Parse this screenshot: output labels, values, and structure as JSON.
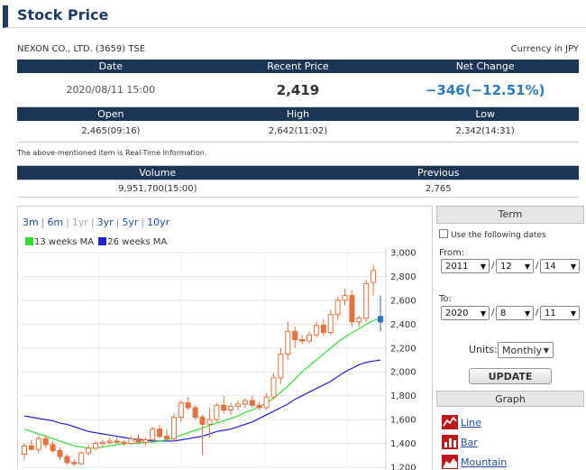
{
  "page": {
    "title": "Stock Price"
  },
  "company": {
    "name": "NEXON CO., LTD. (3659)  TSE",
    "currency": "Currency in JPY"
  },
  "quote": {
    "headers": {
      "date": "Date",
      "recent_price": "Recent Price",
      "net_change": "Net Change"
    },
    "date": "2020/08/11 15:00",
    "recent_price": "2,419",
    "net_change": "−346(−12.51%)"
  },
  "ohl": {
    "headers": {
      "open": "Open",
      "high": "High",
      "low": "Low"
    },
    "open": "2,465(09:16)",
    "high": "2,642(11:02)",
    "low": "2,342(14:31)"
  },
  "note": "The above-mentioned item is Real-Time Information.",
  "volume": {
    "headers": {
      "volume": "Volume",
      "previous": "Previous"
    },
    "volume": "9,951,700(15:00)",
    "previous": "2,765"
  },
  "ranges": [
    "3m",
    "6m",
    "1yr",
    "3yr",
    "5yr",
    "10yr"
  ],
  "legend": {
    "ma13": "13 weeks MA",
    "ma26": "26 weeks MA"
  },
  "colors": {
    "header_bg": "#1b3555",
    "title": "#1f3c63",
    "net_change": "#2b7bc0",
    "ma13": "#33dd33",
    "ma26": "#2222dd",
    "candle": "#e8703a",
    "link": "#1f4fa0"
  },
  "term": {
    "title": "Term",
    "use_dates": "Use the following dates",
    "from_label": "From:",
    "from": {
      "year": "2011",
      "month": "12",
      "day": "14"
    },
    "to_label": "To:",
    "to": {
      "year": "2020",
      "month": "8",
      "day": "11"
    },
    "slash": "/",
    "units_label": "Units:",
    "units_value": "Monthly",
    "update": "UPDATE"
  },
  "graph": {
    "title": "Graph",
    "links": [
      "Line",
      "Bar",
      "Mountain"
    ]
  },
  "chart_data": {
    "type": "candlestick",
    "ylim": [
      1200,
      3000
    ],
    "yticks": [
      "1,200",
      "1,400",
      "1,600",
      "1,800",
      "2,000",
      "2,200",
      "2,400",
      "2,600",
      "2,800",
      "3,000"
    ],
    "candles": [
      {
        "o": 1310,
        "h": 1400,
        "l": 1260,
        "c": 1380
      },
      {
        "o": 1380,
        "h": 1430,
        "l": 1340,
        "c": 1350
      },
      {
        "o": 1350,
        "h": 1470,
        "l": 1320,
        "c": 1440
      },
      {
        "o": 1440,
        "h": 1470,
        "l": 1360,
        "c": 1390
      },
      {
        "o": 1390,
        "h": 1420,
        "l": 1320,
        "c": 1340
      },
      {
        "o": 1340,
        "h": 1370,
        "l": 1260,
        "c": 1290
      },
      {
        "o": 1290,
        "h": 1310,
        "l": 1220,
        "c": 1240
      },
      {
        "o": 1240,
        "h": 1270,
        "l": 1210,
        "c": 1230
      },
      {
        "o": 1230,
        "h": 1340,
        "l": 1220,
        "c": 1320
      },
      {
        "o": 1320,
        "h": 1390,
        "l": 1300,
        "c": 1360
      },
      {
        "o": 1360,
        "h": 1420,
        "l": 1340,
        "c": 1400
      },
      {
        "o": 1400,
        "h": 1430,
        "l": 1370,
        "c": 1410
      },
      {
        "o": 1410,
        "h": 1450,
        "l": 1390,
        "c": 1420
      },
      {
        "o": 1420,
        "h": 1450,
        "l": 1400,
        "c": 1410
      },
      {
        "o": 1410,
        "h": 1430,
        "l": 1380,
        "c": 1400
      },
      {
        "o": 1400,
        "h": 1460,
        "l": 1390,
        "c": 1440
      },
      {
        "o": 1440,
        "h": 1480,
        "l": 1400,
        "c": 1410
      },
      {
        "o": 1410,
        "h": 1450,
        "l": 1380,
        "c": 1430
      },
      {
        "o": 1430,
        "h": 1540,
        "l": 1410,
        "c": 1520
      },
      {
        "o": 1520,
        "h": 1560,
        "l": 1440,
        "c": 1460
      },
      {
        "o": 1460,
        "h": 1520,
        "l": 1420,
        "c": 1440
      },
      {
        "o": 1440,
        "h": 1650,
        "l": 1420,
        "c": 1620
      },
      {
        "o": 1620,
        "h": 1760,
        "l": 1580,
        "c": 1740
      },
      {
        "o": 1740,
        "h": 1790,
        "l": 1680,
        "c": 1700
      },
      {
        "o": 1700,
        "h": 1720,
        "l": 1600,
        "c": 1620
      },
      {
        "o": 1620,
        "h": 1640,
        "l": 1300,
        "c": 1560
      },
      {
        "o": 1560,
        "h": 1700,
        "l": 1450,
        "c": 1600
      },
      {
        "o": 1600,
        "h": 1740,
        "l": 1580,
        "c": 1720
      },
      {
        "o": 1720,
        "h": 1800,
        "l": 1650,
        "c": 1680
      },
      {
        "o": 1680,
        "h": 1740,
        "l": 1640,
        "c": 1710
      },
      {
        "o": 1710,
        "h": 1760,
        "l": 1680,
        "c": 1730
      },
      {
        "o": 1730,
        "h": 1780,
        "l": 1700,
        "c": 1760
      },
      {
        "o": 1760,
        "h": 1800,
        "l": 1700,
        "c": 1720
      },
      {
        "o": 1720,
        "h": 1750,
        "l": 1680,
        "c": 1700
      },
      {
        "o": 1700,
        "h": 1820,
        "l": 1680,
        "c": 1790
      },
      {
        "o": 1790,
        "h": 1990,
        "l": 1770,
        "c": 1950
      },
      {
        "o": 1950,
        "h": 2200,
        "l": 1900,
        "c": 2150
      },
      {
        "o": 2150,
        "h": 2420,
        "l": 2100,
        "c": 2340
      },
      {
        "o": 2340,
        "h": 2380,
        "l": 2200,
        "c": 2270
      },
      {
        "o": 2270,
        "h": 2310,
        "l": 2230,
        "c": 2260
      },
      {
        "o": 2260,
        "h": 2340,
        "l": 2240,
        "c": 2310
      },
      {
        "o": 2310,
        "h": 2420,
        "l": 2290,
        "c": 2390
      },
      {
        "o": 2390,
        "h": 2440,
        "l": 2300,
        "c": 2330
      },
      {
        "o": 2330,
        "h": 2520,
        "l": 2310,
        "c": 2480
      },
      {
        "o": 2480,
        "h": 2630,
        "l": 2440,
        "c": 2600
      },
      {
        "o": 2600,
        "h": 2700,
        "l": 2560,
        "c": 2640
      },
      {
        "o": 2640,
        "h": 2680,
        "l": 2380,
        "c": 2420
      },
      {
        "o": 2420,
        "h": 2470,
        "l": 2380,
        "c": 2450
      },
      {
        "o": 2450,
        "h": 2770,
        "l": 2420,
        "c": 2740
      },
      {
        "o": 2750,
        "h": 2900,
        "l": 2640,
        "c": 2850
      },
      {
        "o": 2465,
        "h": 2642,
        "l": 2342,
        "c": 2419
      }
    ],
    "ma13": [
      1520,
      1500,
      1480,
      1460,
      1440,
      1420,
      1400,
      1380,
      1370,
      1360,
      1360,
      1370,
      1380,
      1390,
      1400,
      1400,
      1400,
      1410,
      1410,
      1420,
      1430,
      1450,
      1470,
      1490,
      1510,
      1530,
      1550,
      1570,
      1590,
      1610,
      1630,
      1660,
      1680,
      1710,
      1740,
      1780,
      1830,
      1880,
      1940,
      2000,
      2050,
      2100,
      2150,
      2200,
      2250,
      2290,
      2330,
      2360,
      2400,
      2430,
      2450
    ],
    "ma26": [
      1630,
      1620,
      1610,
      1600,
      1590,
      1570,
      1560,
      1540,
      1520,
      1500,
      1490,
      1480,
      1470,
      1460,
      1450,
      1440,
      1430,
      1430,
      1420,
      1420,
      1420,
      1420,
      1430,
      1440,
      1450,
      1460,
      1480,
      1500,
      1510,
      1520,
      1540,
      1560,
      1580,
      1610,
      1640,
      1670,
      1700,
      1730,
      1770,
      1800,
      1830,
      1860,
      1890,
      1920,
      1960,
      2000,
      2030,
      2060,
      2080,
      2090,
      2100
    ]
  }
}
